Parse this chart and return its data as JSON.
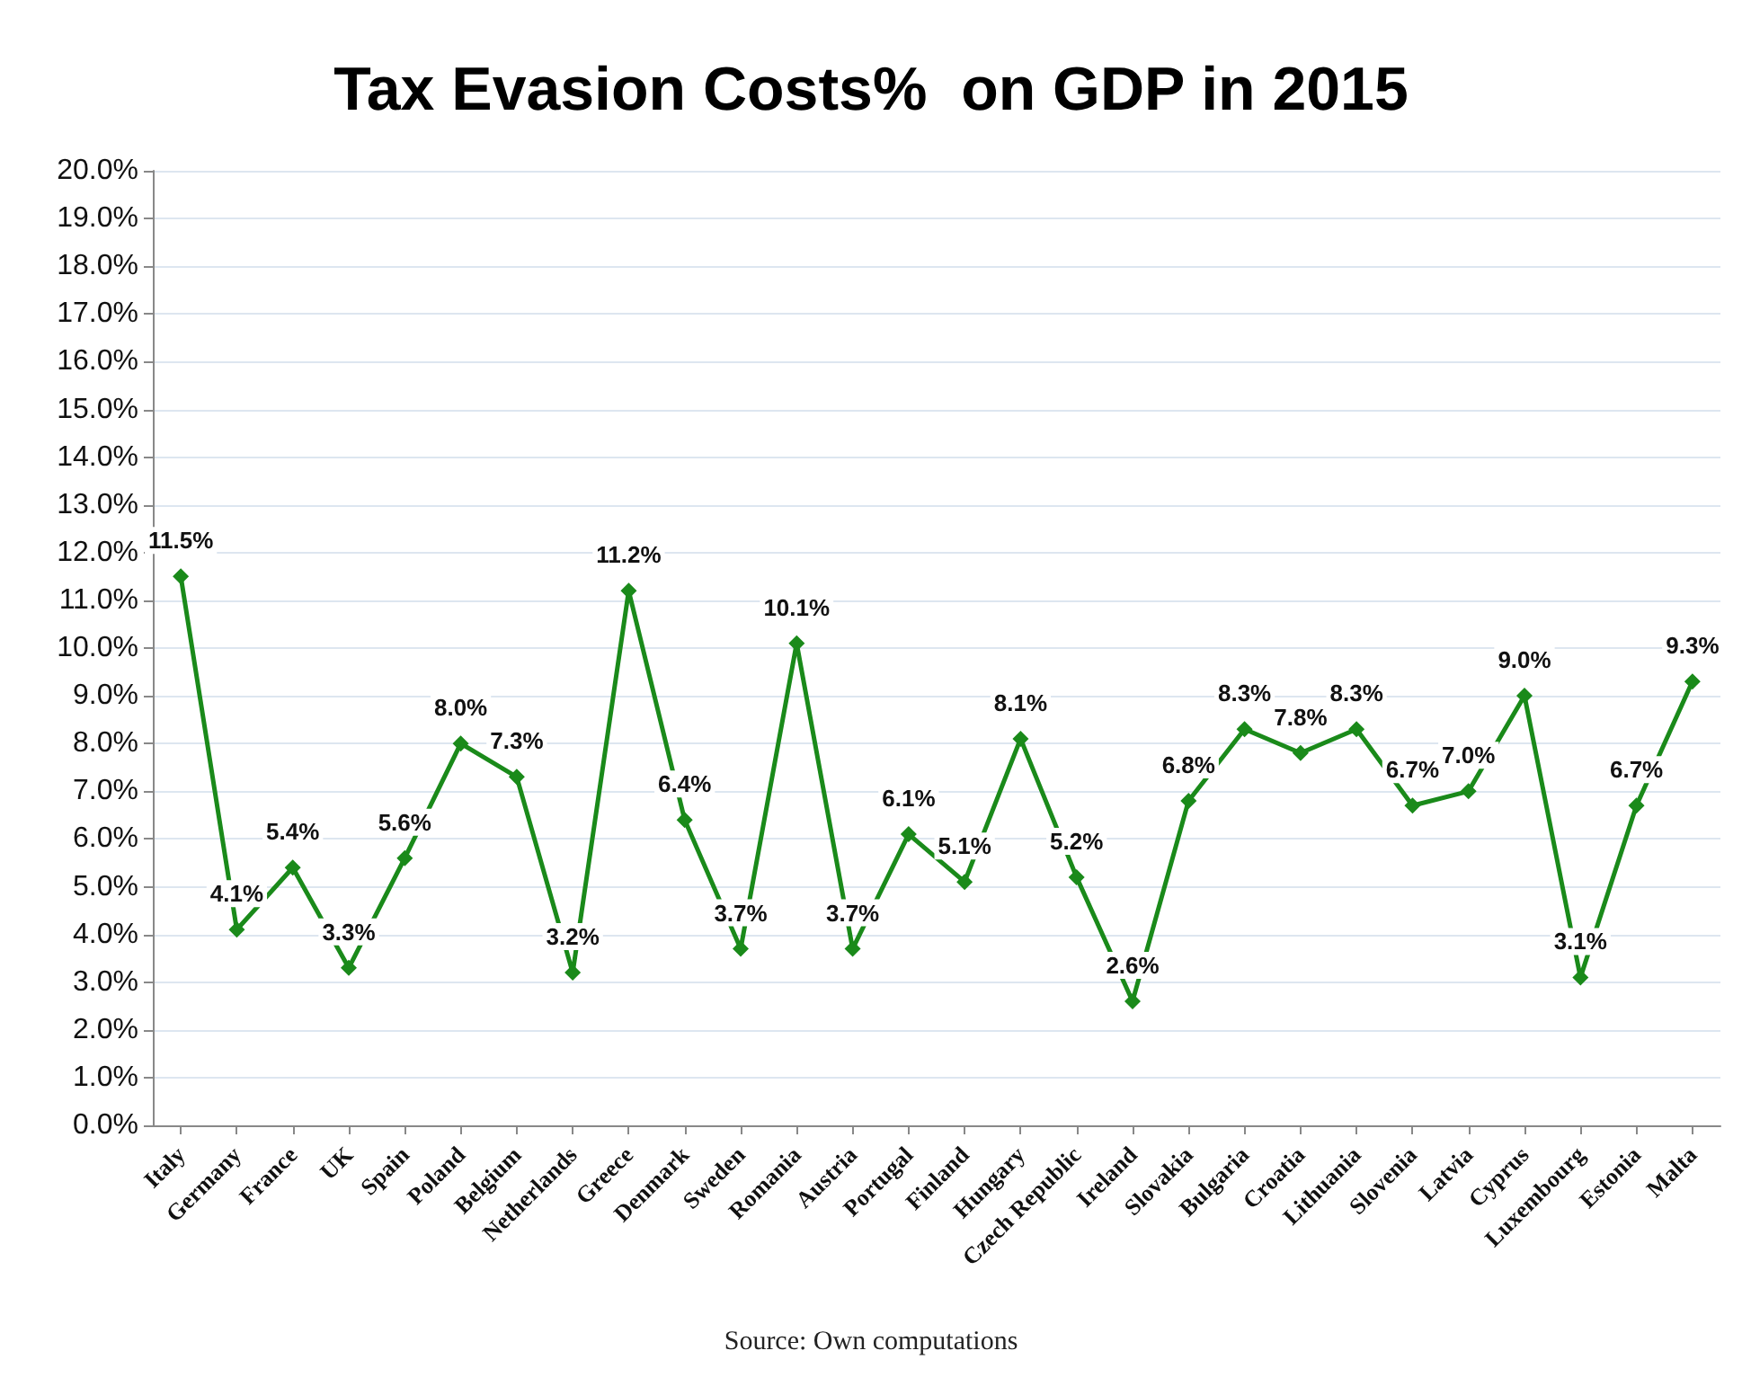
{
  "chart_data": {
    "type": "line",
    "title": "Tax Evasion Costs%  on GDP in 2015",
    "categories": [
      "Italy",
      "Germany",
      "France",
      "UK",
      "Spain",
      "Poland",
      "Belgium",
      "Netherlands",
      "Greece",
      "Denmark",
      "Sweden",
      "Romania",
      "Austria",
      "Portugal",
      "Finland",
      "Hungary",
      "Czech Republic",
      "Ireland",
      "Slovakia",
      "Bulgaria",
      "Croatia",
      "Lithuania",
      "Slovenia",
      "Latvia",
      "Cyprus",
      "Luxembourg",
      "Estonia",
      "Malta"
    ],
    "series": [
      {
        "color": "#1a8a1a",
        "values": [
          11.5,
          4.1,
          5.4,
          3.3,
          5.6,
          8.0,
          7.3,
          3.2,
          11.2,
          6.4,
          3.7,
          10.1,
          3.7,
          6.1,
          5.1,
          8.1,
          5.2,
          2.6,
          6.8,
          8.3,
          7.8,
          8.3,
          6.7,
          7.0,
          9.0,
          3.1,
          6.7,
          9.3
        ],
        "value_labels": [
          "11.5%",
          "4.1%",
          "5.4%",
          "3.3%",
          "5.6%",
          "8.0%",
          "7.3%",
          "3.2%",
          "11.2%",
          "6.4%",
          "3.7%",
          "10.1%",
          "3.7%",
          "6.1%",
          "5.1%",
          "8.1%",
          "5.2%",
          "2.6%",
          "6.8%",
          "8.3%",
          "7.8%",
          "8.3%",
          "6.7%",
          "7.0%",
          "9.0%",
          "3.1%",
          "6.7%",
          "9.3%"
        ]
      }
    ],
    "ylim": [
      0,
      20
    ],
    "yticks": [
      {
        "value": 0,
        "label": "0.0%"
      },
      {
        "value": 1,
        "label": "1.0%"
      },
      {
        "value": 2,
        "label": "2.0%"
      },
      {
        "value": 3,
        "label": "3.0%"
      },
      {
        "value": 4,
        "label": "4.0%"
      },
      {
        "value": 5,
        "label": "5.0%"
      },
      {
        "value": 6,
        "label": "6.0%"
      },
      {
        "value": 7,
        "label": "7.0%"
      },
      {
        "value": 8,
        "label": "8.0%"
      },
      {
        "value": 9,
        "label": "9.0%"
      },
      {
        "value": 10,
        "label": "10.0%"
      },
      {
        "value": 11,
        "label": "11.0%"
      },
      {
        "value": 12,
        "label": "12.0%"
      },
      {
        "value": 13,
        "label": "13.0%"
      },
      {
        "value": 14,
        "label": "14.0%"
      },
      {
        "value": 15,
        "label": "15.0%"
      },
      {
        "value": 16,
        "label": "16.0%"
      },
      {
        "value": 17,
        "label": "17.0%"
      },
      {
        "value": 18,
        "label": "18.0%"
      },
      {
        "value": 19,
        "label": "19.0%"
      },
      {
        "value": 20,
        "label": "20.0%"
      }
    ],
    "grid": "y",
    "marker": "diamond",
    "line_style": "solid",
    "annotations": [
      "Source: Own computations"
    ]
  }
}
